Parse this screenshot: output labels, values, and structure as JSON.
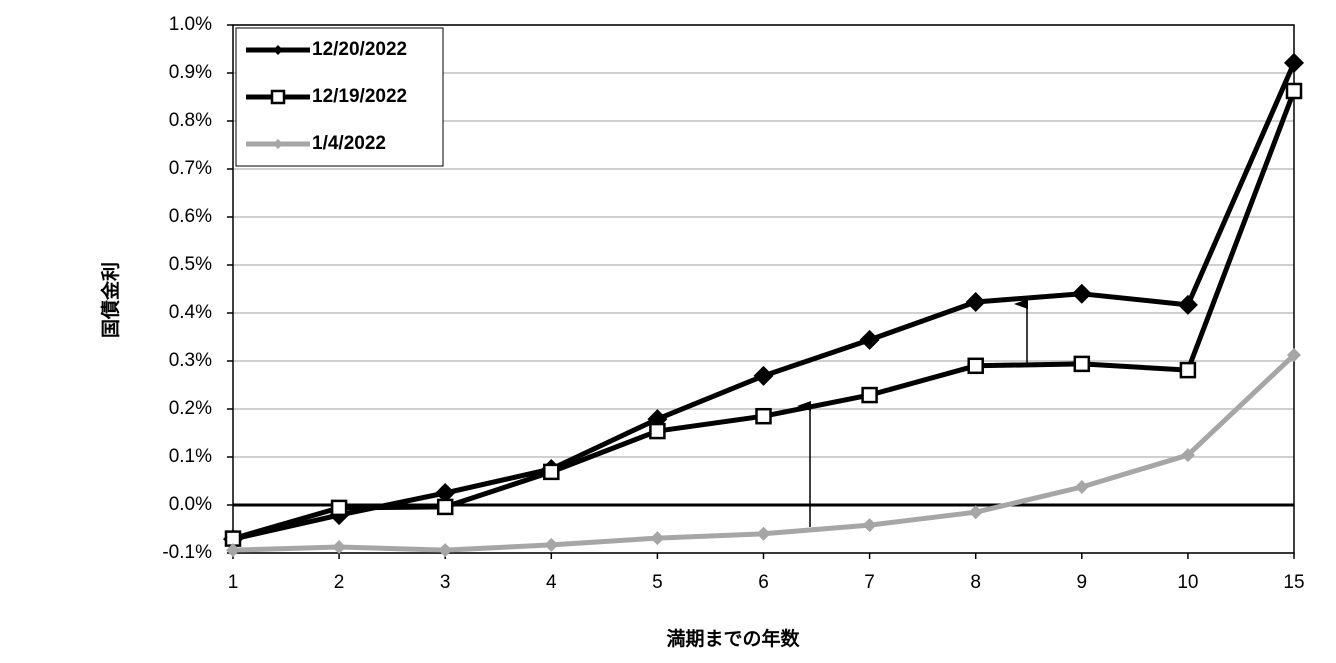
{
  "chart_data": {
    "type": "line",
    "y_label": "国債金利",
    "x_label": "満期までの年数",
    "categories": [
      "1",
      "2",
      "3",
      "4",
      "5",
      "6",
      "7",
      "8",
      "9",
      "10",
      "15"
    ],
    "series": [
      {
        "name": "12/20/2022",
        "color": "#000000",
        "marker": "diamond",
        "values": [
          -0.071,
          -0.021,
          0.025,
          0.075,
          0.179,
          0.269,
          0.344,
          0.423,
          0.44,
          0.417,
          0.921
        ]
      },
      {
        "name": "12/19/2022",
        "color": "#000000",
        "marker": "square",
        "values": [
          -0.07,
          -0.006,
          -0.004,
          0.069,
          0.154,
          0.185,
          0.229,
          0.29,
          0.294,
          0.281,
          0.8625
        ]
      },
      {
        "name": "1/4/2022",
        "color": "#a6a6a6",
        "marker": "diamond",
        "values": [
          -0.094,
          -0.0875,
          -0.094,
          -0.083,
          -0.069,
          -0.06,
          -0.042,
          -0.015,
          0.0375,
          0.104,
          0.3125
        ]
      }
    ],
    "ylim": [
      -0.1,
      1.0
    ],
    "yticks": [
      {
        "value": -0.1,
        "label": "-0.1%"
      },
      {
        "value": 0.0,
        "label": "0.0%"
      },
      {
        "value": 0.1,
        "label": "0.1%"
      },
      {
        "value": 0.2,
        "label": "0.2%"
      },
      {
        "value": 0.3,
        "label": "0.3%"
      },
      {
        "value": 0.4,
        "label": "0.4%"
      },
      {
        "value": 0.5,
        "label": "0.5%"
      },
      {
        "value": 0.6,
        "label": "0.6%"
      },
      {
        "value": 0.7,
        "label": "0.7%"
      },
      {
        "value": 0.8,
        "label": "0.8%"
      },
      {
        "value": 0.9,
        "label": "0.9%"
      },
      {
        "value": 1.0,
        "label": "1.0%"
      }
    ],
    "grid": true,
    "legend": "upper left"
  }
}
